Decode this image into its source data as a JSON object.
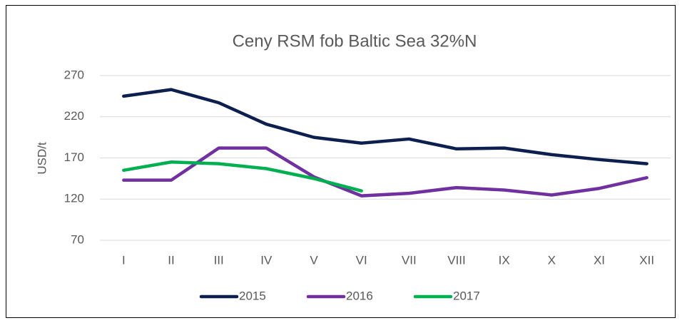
{
  "chart_data": {
    "type": "line",
    "title": "Ceny RSM fob Baltic Sea 32%N",
    "y_label": "USD/t",
    "categories": [
      "I",
      "II",
      "III",
      "IV",
      "V",
      "VI",
      "VII",
      "VIII",
      "IX",
      "X",
      "XI",
      "XII"
    ],
    "series": [
      {
        "name": "2015",
        "color": "#0c1f4f",
        "values": [
          245,
          253,
          237,
          211,
          195,
          188,
          193,
          181,
          182,
          174,
          168,
          163
        ]
      },
      {
        "name": "2016",
        "color": "#7030a0",
        "values": [
          143,
          143,
          182,
          182,
          147,
          124,
          127,
          134,
          131,
          125,
          133,
          146
        ]
      },
      {
        "name": "2017",
        "color": "#00b050",
        "values": [
          155,
          165,
          163,
          157,
          145,
          130,
          null,
          null,
          null,
          null,
          null,
          null
        ]
      }
    ],
    "ylim": [
      70,
      270
    ],
    "yticks": [
      70,
      120,
      170,
      220,
      270
    ],
    "grid": true,
    "legend": "bottom"
  }
}
